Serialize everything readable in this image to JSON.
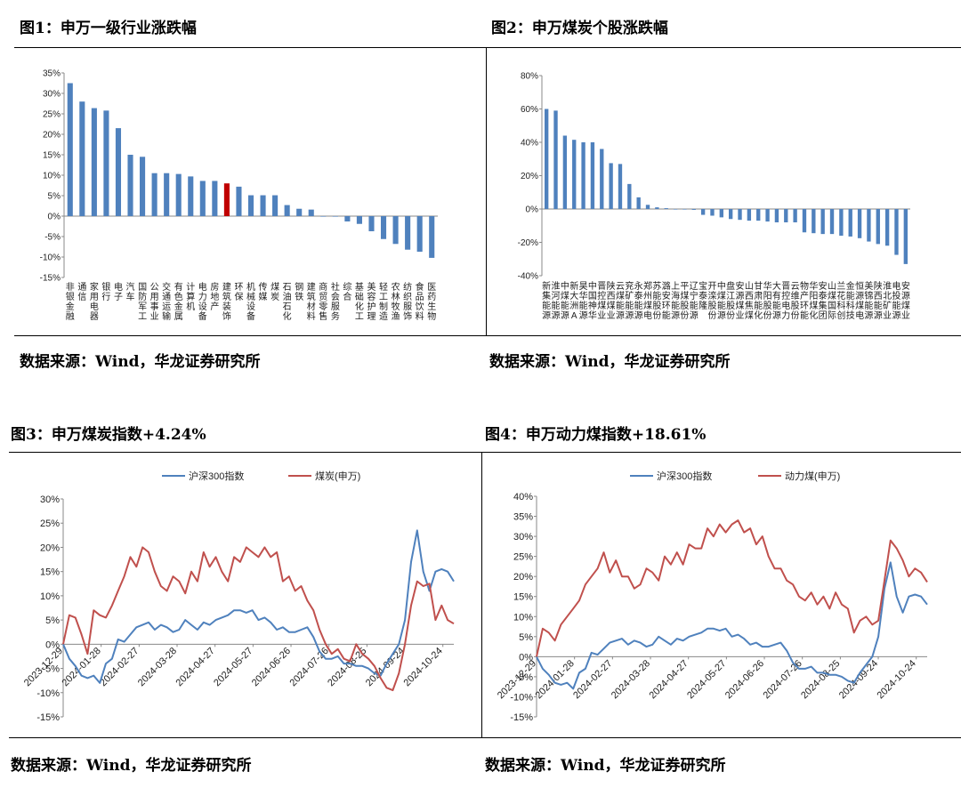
{
  "fig1": {
    "title": "图1：申万一级行业涨跌幅",
    "source": "数据来源：Wind，华龙证券研究所"
  },
  "fig2": {
    "title": "图2：申万煤炭个股涨跌幅",
    "source": "数据来源：Wind，华龙证券研究所"
  },
  "fig3": {
    "title": "图3：申万煤炭指数+4.24%",
    "source": "数据来源：Wind，华龙证券研究所"
  },
  "fig4": {
    "title": "图4：申万动力煤指数+18.61%",
    "source": "数据来源：Wind，华龙证券研究所"
  },
  "chart_data": [
    {
      "type": "bar",
      "ylim": [
        -15,
        35
      ],
      "yticks": [
        35,
        30,
        25,
        20,
        15,
        10,
        5,
        0,
        -5,
        -10,
        -15
      ],
      "yunit": "%",
      "color": "#4f81bd",
      "highlight_color": "#c00000",
      "highlight_index": 13,
      "categories": [
        "非银金融",
        "通信",
        "家用电器",
        "银行",
        "电子",
        "汽车",
        "国防军工",
        "公用事业",
        "交通运输",
        "有色金属",
        "计算机",
        "电力设备",
        "房地产",
        "建筑装饰",
        "环保",
        "机械设备",
        "传媒",
        "煤炭",
        "石油石化",
        "钢铁",
        "建筑材料",
        "商贸零售",
        "社会服务",
        "综合",
        "基础化工",
        "美容护理",
        "轻工制造",
        "农林牧渔",
        "纺织服饰",
        "食品饮料",
        "医药生物"
      ],
      "values": [
        32.5,
        28.0,
        26.4,
        25.8,
        21.5,
        15.0,
        14.5,
        10.5,
        10.5,
        10.3,
        9.7,
        8.6,
        8.6,
        8.0,
        7.2,
        5.1,
        5.1,
        5.1,
        2.7,
        1.8,
        1.6,
        0.0,
        0.0,
        -1.3,
        -1.9,
        -3.7,
        -5.6,
        -6.8,
        -8.2,
        -8.7,
        -10.2
      ]
    },
    {
      "type": "bar",
      "ylim": [
        -40,
        80
      ],
      "yticks": [
        80,
        60,
        40,
        20,
        0,
        -20,
        -40
      ],
      "yunit": "%",
      "color": "#4f81bd",
      "categories": [
        "新集能源",
        "淮河能源",
        "中煤能源",
        "新大洲A",
        "昊华能源",
        "中国神华",
        "晋控煤业",
        "陕西煤业",
        "云煤能源",
        "兖矿能源",
        "永泰能源",
        "郑州煤电",
        "苏能股份",
        "潞安环能",
        "上海能源",
        "平煤股份",
        "辽宁能源",
        "宝泰隆",
        "开滦股份",
        "中煤能源",
        "盘江股份",
        "安源煤业",
        "山西焦煤",
        "甘肃能化",
        "华阳股份",
        "大有能源",
        "晋控电力",
        "云维股份",
        "物产环能",
        "华阳煤化",
        "安泰集团",
        "山煤国际",
        "兰花科创",
        "金能科技",
        "恒源煤电",
        "美锦能源",
        "陕西能源",
        "淮北矿业",
        "电投能源",
        "安源煤业"
      ],
      "values": [
        60.0,
        59.0,
        44.0,
        41.5,
        40.0,
        40.0,
        36.0,
        27.5,
        27.0,
        15.0,
        7.0,
        2.5,
        1.0,
        0.5,
        0.0,
        0.0,
        -0.5,
        -3.5,
        -4.0,
        -5.0,
        -6.0,
        -6.5,
        -7.0,
        -7.0,
        -7.5,
        -8.0,
        -8.0,
        -8.0,
        -14.0,
        -14.5,
        -15.0,
        -15.0,
        -16.0,
        -16.5,
        -17.5,
        -19.5,
        -21.0,
        -22.0,
        -27.5,
        -33.0
      ]
    },
    {
      "type": "line",
      "legend": "top-center",
      "ylim": [
        -15,
        30
      ],
      "yticks": [
        30,
        25,
        20,
        15,
        10,
        5,
        0,
        -5,
        -10,
        -15
      ],
      "yunit": "%",
      "xticks": [
        "2023-12-29",
        "2024-01-28",
        "2024-02-27",
        "2024-03-28",
        "2024-04-27",
        "2024-05-27",
        "2024-06-26",
        "2024-07-26",
        "2024-08-25",
        "2024-09-24",
        "2024-10-24"
      ],
      "series": [
        {
          "name": "沪深300指数",
          "color": "#4f81bd",
          "values": [
            0,
            -3,
            -4.5,
            -6.5,
            -7,
            -6.5,
            -8,
            -4,
            -3,
            1,
            0.5,
            2,
            3.5,
            4,
            4.5,
            3,
            4,
            3.5,
            2.5,
            3,
            5,
            4,
            3,
            4.5,
            4,
            5,
            5.5,
            6,
            7,
            7,
            6.5,
            7,
            5,
            5.5,
            4.5,
            3,
            3.5,
            2.5,
            2.5,
            3,
            3.5,
            1.5,
            -1.5,
            -3,
            -3,
            -2.5,
            -4,
            -4,
            -4.5,
            -4.5,
            -5,
            -6,
            -6.5,
            -4,
            -2,
            0,
            5,
            17,
            23.5,
            15,
            11,
            15,
            15.5,
            15,
            13
          ]
        },
        {
          "name": "煤炭(申万)",
          "color": "#c0504d",
          "values": [
            0,
            6,
            5.5,
            2,
            -2,
            7,
            6,
            5.5,
            8,
            11,
            14,
            18,
            16,
            20,
            19,
            15,
            12,
            11,
            14,
            13,
            10.5,
            15,
            13,
            19,
            16,
            18,
            15,
            13,
            18,
            17,
            20,
            19,
            18,
            20,
            18,
            19,
            13,
            14,
            11,
            12,
            9,
            7,
            3,
            0,
            -2,
            -1,
            -3,
            -3.5,
            0,
            -2,
            -3,
            -4.5,
            -7,
            -9,
            -9.5,
            -6,
            0,
            8,
            13,
            12,
            12.5,
            5,
            8,
            5,
            4.24
          ]
        }
      ]
    },
    {
      "type": "line",
      "legend": "top-center",
      "ylim": [
        -15,
        40
      ],
      "yticks": [
        40,
        35,
        30,
        25,
        20,
        15,
        10,
        5,
        0,
        -5,
        -10,
        -15
      ],
      "yunit": "%",
      "xticks": [
        "2023-12-29",
        "2024-01-28",
        "2024-02-27",
        "2024-03-28",
        "2024-04-27",
        "2024-05-27",
        "2024-06-26",
        "2024-07-26",
        "2024-08-25",
        "2024-09-24",
        "2024-10-24"
      ],
      "series": [
        {
          "name": "沪深300指数",
          "color": "#4f81bd",
          "values": [
            0,
            -3,
            -4.5,
            -6.5,
            -7,
            -6.5,
            -8,
            -4,
            -3,
            1,
            0.5,
            2,
            3.5,
            4,
            4.5,
            3,
            4,
            3.5,
            2.5,
            3,
            5,
            4,
            3,
            4.5,
            4,
            5,
            5.5,
            6,
            7,
            7,
            6.5,
            7,
            5,
            5.5,
            4.5,
            3,
            3.5,
            2.5,
            2.5,
            3,
            3.5,
            1.5,
            -1.5,
            -3,
            -3,
            -2.5,
            -4,
            -4,
            -4.5,
            -4.5,
            -5,
            -6,
            -6.5,
            -4,
            -2,
            0,
            5,
            17,
            23.5,
            15,
            11,
            15,
            15.5,
            15,
            13
          ]
        },
        {
          "name": "动力煤(申万)",
          "color": "#c0504d",
          "values": [
            0,
            7,
            6,
            4,
            8,
            10,
            12,
            14,
            18,
            20,
            22,
            26,
            21,
            24,
            20,
            20,
            17,
            18,
            22,
            21,
            19,
            25,
            23,
            26,
            23,
            28,
            27,
            27,
            32,
            30,
            33,
            31,
            33,
            34,
            31,
            32,
            28,
            30,
            25,
            22,
            22,
            19,
            18,
            15,
            14,
            16,
            13,
            15,
            12,
            16,
            13,
            12,
            6,
            9,
            10,
            8,
            9,
            19,
            29,
            27,
            24,
            20,
            22,
            21,
            18.61
          ]
        }
      ]
    }
  ]
}
